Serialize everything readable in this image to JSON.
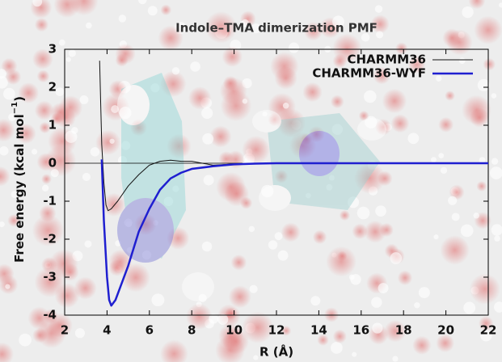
{
  "chart_data": {
    "type": "line",
    "title": "Indole–TMA dimerization PMF",
    "x_label": "R (Å)",
    "y_label": {
      "text": "Free energy (kcal mol",
      "sup": "−1",
      "tail": ")"
    },
    "xlim": [
      2,
      22
    ],
    "ylim": [
      -4,
      3
    ],
    "xticks": [
      2,
      4,
      6,
      8,
      10,
      12,
      14,
      16,
      18,
      20,
      22
    ],
    "yticks": [
      -4,
      -3,
      -2,
      -1,
      0,
      1,
      2,
      3
    ],
    "legend": "top-right",
    "series": [
      {
        "name": "CHARMM36",
        "color": "#111111",
        "width": 1,
        "x": [
          3.65,
          3.75,
          3.85,
          3.95,
          4.05,
          4.2,
          4.5,
          5,
          5.5,
          6,
          6.5,
          7,
          7.5,
          8,
          8.5,
          9,
          10,
          11,
          12,
          14,
          16,
          18,
          20,
          22
        ],
        "values": [
          2.7,
          0.5,
          -0.5,
          -1.1,
          -1.25,
          -1.2,
          -1.0,
          -0.6,
          -0.3,
          -0.05,
          0.05,
          0.08,
          0.05,
          0.05,
          0.0,
          -0.05,
          -0.02,
          0,
          0,
          0,
          0,
          0,
          0,
          0
        ]
      },
      {
        "name": "CHARMM36-WYF",
        "color": "#1f1fd0",
        "width": 2.5,
        "x": [
          3.75,
          3.85,
          4.0,
          4.1,
          4.2,
          4.4,
          5,
          5.5,
          6,
          6.5,
          7,
          7.5,
          8,
          9,
          10,
          11,
          12,
          14,
          16,
          18,
          20,
          22
        ],
        "values": [
          0.1,
          -1.5,
          -3.0,
          -3.6,
          -3.75,
          -3.6,
          -2.7,
          -1.8,
          -1.2,
          -0.7,
          -0.4,
          -0.25,
          -0.15,
          -0.08,
          -0.03,
          -0.01,
          0,
          0,
          0,
          0,
          0,
          0
        ]
      }
    ]
  }
}
